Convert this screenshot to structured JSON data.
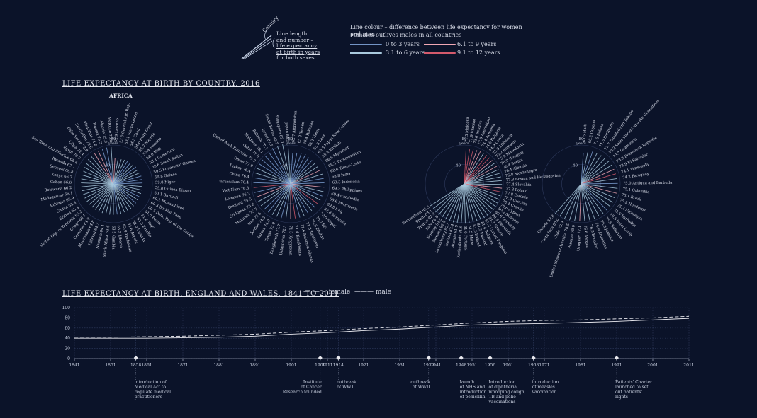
{
  "legend": {
    "country_label": "Country",
    "line_desc": [
      "Line length",
      "and number –",
      "life expectancy",
      "at birth in years",
      "for both sexes"
    ],
    "colour_title_prefix": "Line colour – ",
    "colour_title_link": "difference between life expectancy for women and men",
    "colour_title_suffix": ":",
    "colour_sub": "Females outlives males in all countries",
    "ranges": [
      {
        "label": "0 to 3 years",
        "color": "#7fa2d6"
      },
      {
        "label": "3.1 to 6 years",
        "color": "#a9c9dd"
      },
      {
        "label": "6.1 to 9 years",
        "color": "#f0a7b4"
      },
      {
        "label": "9.1 to 12 years",
        "color": "#d45a6c"
      }
    ]
  },
  "section1_title": "LIFE EXPECTANCY AT BIRTH BY COUNTRY, 2016",
  "africa_label": "AFRICA",
  "scale_labels": {
    "r80": "80",
    "years": "years",
    "r40": "40"
  },
  "chart_data": [
    {
      "type": "radial-bar",
      "title": "AFRICA",
      "categories": [
        "Lesotho",
        "Central Afr. Rep.",
        "Sierra Leone",
        "Chad",
        "Ivory Coast",
        "Nigeria",
        "Somalia",
        "Mali",
        "Cameroon",
        "South Sudan",
        "Equatorial Guinea",
        "Guinea",
        "Niger",
        "Guinea-Bissau",
        "Burundi",
        "Mozambique",
        "Burkina Faso",
        "Dem. Rep. of the Congo",
        "Benin",
        "Togo",
        "Zambia",
        "Uganda",
        "Angola",
        "Zimbabwe",
        "Liberia",
        "Gambia",
        "South Africa",
        "Namibia",
        "Djibouti",
        "Mauritania",
        "Comoros",
        "Congo",
        "United Rep. of Tanzania",
        "Eritrea",
        "Sudan",
        "Ethiopia",
        "Madagascar",
        "Botswana",
        "Gabon",
        "Kenya",
        "Senegal",
        "Rwanda",
        "Sao Tome and Principe",
        "Egypt",
        "Libya",
        "Cabo Verde",
        "Seychelles",
        "Mauritius",
        "Tunisia",
        "Algeria",
        "Morocco"
      ],
      "values": [
        52.9,
        53.0,
        53.1,
        54.3,
        54.6,
        55.2,
        55.4,
        58.0,
        58.1,
        58.6,
        59.5,
        59.8,
        59.8,
        59.8,
        60.1,
        60.1,
        60.3,
        60.5,
        61.0,
        61.6,
        62.3,
        62.5,
        62.6,
        63.0,
        63.3,
        63.5,
        63.6,
        64.1,
        64.3,
        64.8,
        64.9,
        65.1,
        65.2,
        65.4,
        65.8,
        65.9,
        66.1,
        66.2,
        66.6,
        66.7,
        66.8,
        67.1,
        68.4,
        70.9,
        72.4,
        72.8,
        73.6,
        74.8,
        75.3,
        75.9,
        76.0
      ],
      "diff_class": [
        2,
        1,
        1,
        1,
        0,
        0,
        1,
        0,
        1,
        1,
        0,
        0,
        0,
        1,
        1,
        1,
        0,
        1,
        0,
        1,
        1,
        1,
        1,
        1,
        0,
        1,
        1,
        1,
        1,
        1,
        1,
        1,
        1,
        1,
        1,
        1,
        1,
        1,
        1,
        1,
        1,
        1,
        1,
        1,
        1,
        1,
        2,
        2,
        0,
        0,
        1
      ]
    },
    {
      "type": "radial-bar",
      "title": "ASIA",
      "categories": [
        "Afghanistan",
        "Yemen",
        "Pakistan",
        "Timor",
        "Laos",
        "Papua New Guinea",
        "Kiribati",
        "Myanmar",
        "Turkmenistan",
        "Timor-Leste",
        "India",
        "Indonesia",
        "Philippines",
        "Cambodia",
        "Micronesia",
        "Iraq",
        "Mongolia",
        "Nepal",
        "Fiji",
        "Bhutan",
        "Tajikistan",
        "Solomon Islands",
        "Kazakhstan",
        "Kyrgyzstan",
        "Uzbekistan",
        "Bangladesh",
        "Tonga",
        "Samoa",
        "Jordan",
        "Iran",
        "Malaysia",
        "Sri Lanka",
        "Thailand",
        "Lebanon",
        "Viet Nam",
        "Darussalam",
        "China",
        "Turkey",
        "Oman",
        "United Arab Emirates",
        "Qatar",
        "Maldives",
        "Bahrain",
        "Israel",
        "South Korea",
        "Singapore",
        "Japan"
      ],
      "values": [
        62.7,
        65.3,
        66.4,
        68.2,
        65.8,
        65.5,
        65.8,
        66.6,
        68.2,
        68.6,
        68.8,
        69.3,
        69.3,
        69.4,
        69.6,
        69.8,
        69.8,
        70.0,
        70.2,
        70.5,
        71.3,
        71.6,
        71.4,
        71.3,
        72.3,
        72.7,
        73.0,
        74.0,
        74.3,
        75.5,
        75.7,
        75.8,
        75.5,
        76.3,
        76.3,
        76.4,
        76.4,
        76.4,
        77.0,
        77.2,
        77.8,
        78.1,
        79.1,
        82.5,
        82.7,
        83.0,
        84.2
      ],
      "diff_class": [
        0,
        0,
        0,
        0,
        0,
        0,
        1,
        1,
        2,
        1,
        0,
        0,
        2,
        1,
        0,
        1,
        3,
        0,
        1,
        0,
        1,
        0,
        3,
        2,
        1,
        0,
        1,
        1,
        0,
        0,
        1,
        1,
        2,
        0,
        3,
        0,
        0,
        1,
        1,
        0,
        0,
        0,
        0,
        0,
        1,
        1,
        1
      ]
    },
    {
      "type": "radial-bar",
      "title": "EUROPE",
      "categories": [
        "Moldova",
        "Ukraine",
        "Belarus",
        "Azerbaijan",
        "Armenia",
        "Bulgaria",
        "Latvia",
        "Lithuania",
        "Romania",
        "Macedonia",
        "Hungary",
        "Serbia",
        "Albania",
        "Montenegro",
        "Bosnia and Herzegovina",
        "Slovakia",
        "Poland",
        "Estonia",
        "Czechia",
        "Croatia",
        "Cyprus",
        "Slovenia",
        "Germany",
        "Denmark",
        "Greece",
        "United Kingdom",
        "Belgium",
        "Finland",
        "Ireland",
        "Malta",
        "Portugal",
        "Netherlands",
        "Austria",
        "Iceland",
        "Luxembourg",
        "Sweden",
        "Norway",
        "Italy",
        "France",
        "Spain",
        "Switzerland"
      ],
      "values": [
        71.5,
        71.9,
        73.6,
        73.9,
        74.4,
        74.6,
        74.9,
        75.0,
        75.2,
        75.9,
        76.0,
        76.4,
        76.4,
        76.8,
        77.3,
        77.4,
        77.8,
        77.8,
        78.3,
        78.4,
        79.6,
        80.2,
        80.6,
        80.9,
        81.1,
        81.2,
        81.4,
        81.5,
        81.5,
        81.5,
        81.6,
        81.6,
        81.9,
        82.4,
        82.5,
        82.5,
        82.5,
        82.8,
        82.9,
        83.1,
        83.3
      ],
      "diff_class": [
        3,
        3,
        3,
        2,
        2,
        1,
        3,
        3,
        2,
        1,
        2,
        1,
        1,
        1,
        1,
        1,
        2,
        3,
        1,
        1,
        1,
        1,
        1,
        1,
        1,
        1,
        1,
        1,
        1,
        1,
        1,
        1,
        1,
        1,
        1,
        1,
        1,
        1,
        1,
        1,
        1
      ]
    },
    {
      "type": "radial-bar",
      "title": "AMERICAS",
      "categories": [
        "Haiti",
        "Guyana",
        "Bolivia",
        "Suriname",
        "Trinidad and Tobago",
        "Saint Vincent and the Grenadines",
        "Guatemala",
        "Dominican Republic",
        "El Salvador",
        "Venezuela",
        "Paraguay",
        "Antigua and Barbuda",
        "Colombia",
        "Brazil",
        "Honduras",
        "Nicaragua",
        "Barbados",
        "Saint Lucia",
        "Bahamas",
        "Jamaica",
        "Argentina",
        "Ecuador",
        "Mexico",
        "Uruguay",
        "Panama",
        "United States of America",
        "Chile",
        "Costa Rica",
        "Canada"
      ],
      "values": [
        63.5,
        66.2,
        71.5,
        71.6,
        71.7,
        73.2,
        73.7,
        73.9,
        73.9,
        74.1,
        74.2,
        75.0,
        75.1,
        75.1,
        75.2,
        75.2,
        75.6,
        75.6,
        75.8,
        76.0,
        76.9,
        76.8,
        76.6,
        77.1,
        78.0,
        78.5,
        79.9,
        80.0,
        82.8
      ],
      "diff_class": [
        0,
        1,
        0,
        1,
        1,
        1,
        1,
        1,
        2,
        3,
        1,
        0,
        1,
        2,
        1,
        1,
        1,
        0,
        1,
        1,
        1,
        1,
        1,
        2,
        1,
        1,
        1,
        1,
        1
      ]
    },
    {
      "type": "line",
      "title": "LIFE EXPECTANCY AT BIRTH, ENGLAND AND WALES, 1841 TO 2011",
      "x": [
        1841,
        1851,
        1861,
        1871,
        1881,
        1891,
        1901,
        1911,
        1921,
        1931,
        1941,
        1951,
        1961,
        1971,
        1981,
        1991,
        2001,
        2011
      ],
      "series": [
        {
          "name": "female",
          "values": [
            42,
            42,
            43,
            44,
            46,
            48,
            52,
            55,
            59,
            62,
            66,
            70,
            73,
            75,
            76,
            78,
            80,
            83
          ]
        },
        {
          "name": "male",
          "values": [
            40,
            40,
            40,
            41,
            42,
            44,
            48,
            51,
            55,
            58,
            62,
            66,
            68,
            69,
            71,
            73,
            76,
            79
          ]
        }
      ],
      "x_ticks": [
        "1841",
        "1851",
        "1858",
        "1861",
        "1871",
        "1881",
        "1891",
        "1901",
        "1909",
        "1911",
        "1914",
        "1921",
        "1931",
        "1939",
        "1941",
        "1948",
        "1951",
        "1956",
        "1961",
        "1968",
        "1971",
        "1981",
        "1991",
        "2001",
        "2011"
      ],
      "y_ticks": [
        "100",
        "80",
        "60",
        "40",
        "20",
        "0"
      ],
      "ylim": [
        0,
        100
      ]
    }
  ],
  "timeline": {
    "title": "LIFE EXPECTANCY AT BIRTH, ENGLAND AND WALES, 1841 TO 2011",
    "legend_female": "female",
    "legend_male": "male",
    "events": [
      {
        "year": 1858,
        "text": [
          "introduction of",
          "Medical Act to",
          "regulate medical",
          "practitioners"
        ]
      },
      {
        "year": 1909,
        "text": [
          "Institute",
          "of Cancer",
          "Research founded"
        ]
      },
      {
        "year": 1914,
        "text": [
          "outbreak",
          "of WW1"
        ]
      },
      {
        "year": 1939,
        "text": [
          "outbreak",
          "of WWII"
        ]
      },
      {
        "year": 1948,
        "text": [
          "launch",
          "of NHS and",
          "introduction",
          "of penicillin"
        ]
      },
      {
        "year": 1956,
        "text": [
          "Introduction",
          "of diphtheria,",
          "whooping cough,",
          "TB and polio",
          "vaccinations"
        ]
      },
      {
        "year": 1968,
        "text": [
          "introduction",
          "of measles",
          "vaccination"
        ]
      },
      {
        "year": 1991,
        "text": [
          "Patients' Charter",
          "launched to set",
          "out patients'",
          "rights"
        ]
      }
    ]
  }
}
